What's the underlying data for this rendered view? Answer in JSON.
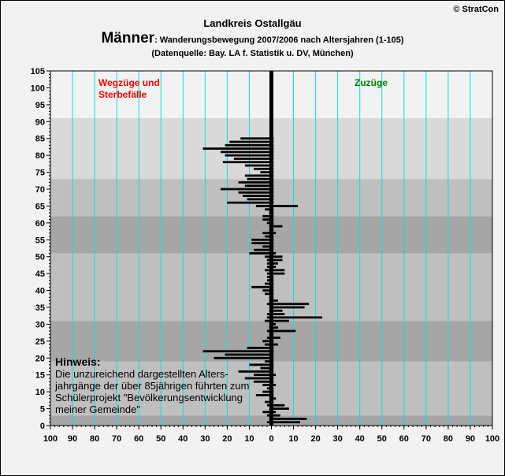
{
  "header": {
    "copyright": "© StratCon",
    "region": "Landkreis Ostallgäu",
    "title_main": "Männer",
    "title_rest": ": Wanderungsbewegung 2007/2006 nach Altersjahren (1-105)",
    "subtitle": "(Datenquelle: Bay. LA f. Statistik u. DV, München)"
  },
  "note": {
    "title": "Hinweis:",
    "body": "Die unzureichend dargestellten Alters-\njahrgänge der über 85jährigen führten zum\nSchülerprojekt \"Bevölkerungsentwicklung\nmeiner Gemeinde\""
  },
  "colors": {
    "left_label": "#ff0000",
    "right_label": "#008000",
    "gridline": "#00e5e5",
    "bar": "#000000",
    "band_light": "#f2f2f2",
    "band_mid": "#d9d9d9",
    "band_dark": "#bfbfbf",
    "band_darker": "#a6a6a6"
  },
  "chart_data": {
    "type": "bar",
    "orientation": "horizontal",
    "left_label": "Wegzüge und\nSterbefälle",
    "right_label": "Zuzüge",
    "x_ticks": [
      "100",
      "90",
      "80",
      "70",
      "60",
      "50",
      "40",
      "30",
      "20",
      "10",
      "0",
      "10",
      "20",
      "30",
      "40",
      "50",
      "60",
      "70",
      "80",
      "90",
      "100"
    ],
    "y_ticks": [
      0,
      5,
      10,
      15,
      20,
      25,
      30,
      35,
      40,
      45,
      50,
      55,
      60,
      65,
      70,
      75,
      80,
      85,
      90,
      95,
      100,
      105
    ],
    "xlim": [
      -100,
      100
    ],
    "ylim": [
      0,
      105
    ],
    "age_bands": [
      {
        "from": 0,
        "to": 3,
        "shade": "band_darker"
      },
      {
        "from": 3,
        "to": 19,
        "shade": "band_dark"
      },
      {
        "from": 19,
        "to": 31,
        "shade": "band_darker"
      },
      {
        "from": 31,
        "to": 51,
        "shade": "band_dark"
      },
      {
        "from": 51,
        "to": 62,
        "shade": "band_darker"
      },
      {
        "from": 62,
        "to": 73,
        "shade": "band_dark"
      },
      {
        "from": 73,
        "to": 91,
        "shade": "band_mid"
      },
      {
        "from": 91,
        "to": 105,
        "shade": "band_light"
      }
    ],
    "series": [
      {
        "name": "Wegzüge und Sterbefälle",
        "ages": [
          1,
          2,
          3,
          4,
          5,
          6,
          7,
          8,
          9,
          10,
          11,
          12,
          13,
          14,
          15,
          16,
          17,
          18,
          19,
          20,
          21,
          22,
          23,
          24,
          25,
          26,
          27,
          28,
          29,
          30,
          31,
          32,
          33,
          34,
          35,
          36,
          37,
          38,
          39,
          40,
          41,
          42,
          43,
          44,
          45,
          46,
          47,
          48,
          49,
          50,
          51,
          52,
          53,
          54,
          55,
          56,
          57,
          58,
          59,
          60,
          61,
          62,
          63,
          64,
          65,
          66,
          67,
          68,
          69,
          70,
          71,
          72,
          73,
          74,
          75,
          76,
          77,
          78,
          79,
          80,
          81,
          82,
          83,
          84,
          85
        ],
        "values": [
          2,
          1,
          2,
          4,
          1,
          2,
          3,
          1,
          7,
          4,
          2,
          4,
          8,
          12,
          8,
          15,
          5,
          10,
          3,
          26,
          21,
          31,
          11,
          3,
          4,
          2,
          1,
          2,
          1,
          1,
          3,
          2,
          2,
          1,
          1,
          2,
          1,
          1,
          3,
          4,
          9,
          3,
          2,
          2,
          2,
          3,
          2,
          2,
          2,
          3,
          10,
          8,
          4,
          9,
          9,
          3,
          4,
          1,
          1,
          2,
          4,
          4,
          1,
          3,
          7,
          20,
          11,
          13,
          15,
          23,
          12,
          15,
          11,
          12,
          5,
          8,
          12,
          22,
          17,
          21,
          23,
          31,
          21,
          19,
          14
        ]
      },
      {
        "name": "Zuzüge",
        "ages": [
          1,
          2,
          3,
          4,
          5,
          6,
          7,
          8,
          9,
          10,
          11,
          12,
          13,
          14,
          15,
          16,
          17,
          18,
          19,
          20,
          21,
          22,
          23,
          24,
          25,
          26,
          27,
          28,
          29,
          30,
          31,
          32,
          33,
          34,
          35,
          36,
          37,
          38,
          39,
          40,
          41,
          42,
          43,
          44,
          45,
          46,
          47,
          48,
          49,
          50,
          51,
          52,
          53,
          54,
          55,
          56,
          57,
          58,
          59,
          60,
          61,
          62,
          63,
          64,
          65,
          66,
          67,
          68,
          69,
          70,
          71,
          72,
          73,
          74,
          75,
          76,
          77,
          78,
          79,
          80,
          81,
          82,
          83,
          84,
          85
        ],
        "values": [
          13,
          16,
          4,
          2,
          8,
          6,
          1,
          2,
          1,
          1,
          1,
          2,
          1,
          1,
          2,
          1,
          1,
          1,
          1,
          1,
          1,
          1,
          1,
          3,
          1,
          4,
          1,
          11,
          3,
          2,
          8,
          23,
          6,
          5,
          15,
          17,
          3,
          1,
          1,
          1,
          1,
          1,
          1,
          1,
          6,
          6,
          2,
          3,
          5,
          5,
          2,
          1,
          1,
          1,
          1,
          1,
          2,
          1,
          5,
          1,
          1,
          1,
          1,
          1,
          12,
          1,
          1,
          1,
          1,
          1,
          1,
          1,
          1,
          1,
          1,
          1,
          1,
          1,
          1,
          1,
          1,
          1,
          1,
          1,
          1
        ]
      }
    ]
  }
}
